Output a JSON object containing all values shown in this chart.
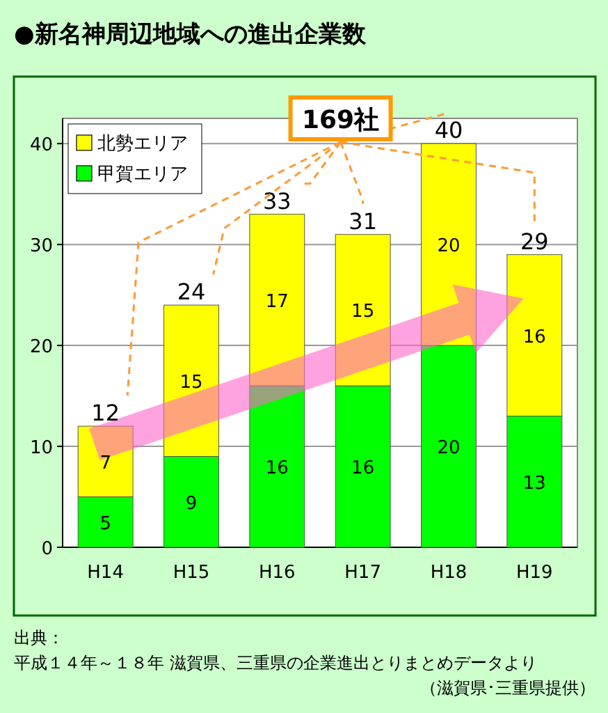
{
  "chart_data": {
    "type": "bar",
    "title": "●新名神周辺地域への進出企業数",
    "categories": [
      "H14",
      "H15",
      "H16",
      "H17",
      "H18",
      "H19"
    ],
    "series": [
      {
        "name": "甲賀エリア",
        "color": "#00ff00",
        "values": [
          5,
          9,
          16,
          16,
          20,
          13
        ]
      },
      {
        "name": "北勢エリア",
        "color": "#ffff00",
        "values": [
          7,
          15,
          17,
          15,
          20,
          16
        ]
      }
    ],
    "stacked": true,
    "data_labels": true,
    "totals": [
      "12",
      "24",
      "33",
      "31",
      "40",
      "29"
    ],
    "ylim": [
      0,
      42.5
    ],
    "yticks": [
      0,
      10,
      20,
      30,
      40
    ],
    "grid": "y",
    "legend": "top left",
    "annotations": [
      "169社",
      "出典：",
      "平成１４年～１８年 滋賀県、三重県の企業進出とりまとめデータより",
      "（滋賀県･三重県提供）"
    ]
  }
}
